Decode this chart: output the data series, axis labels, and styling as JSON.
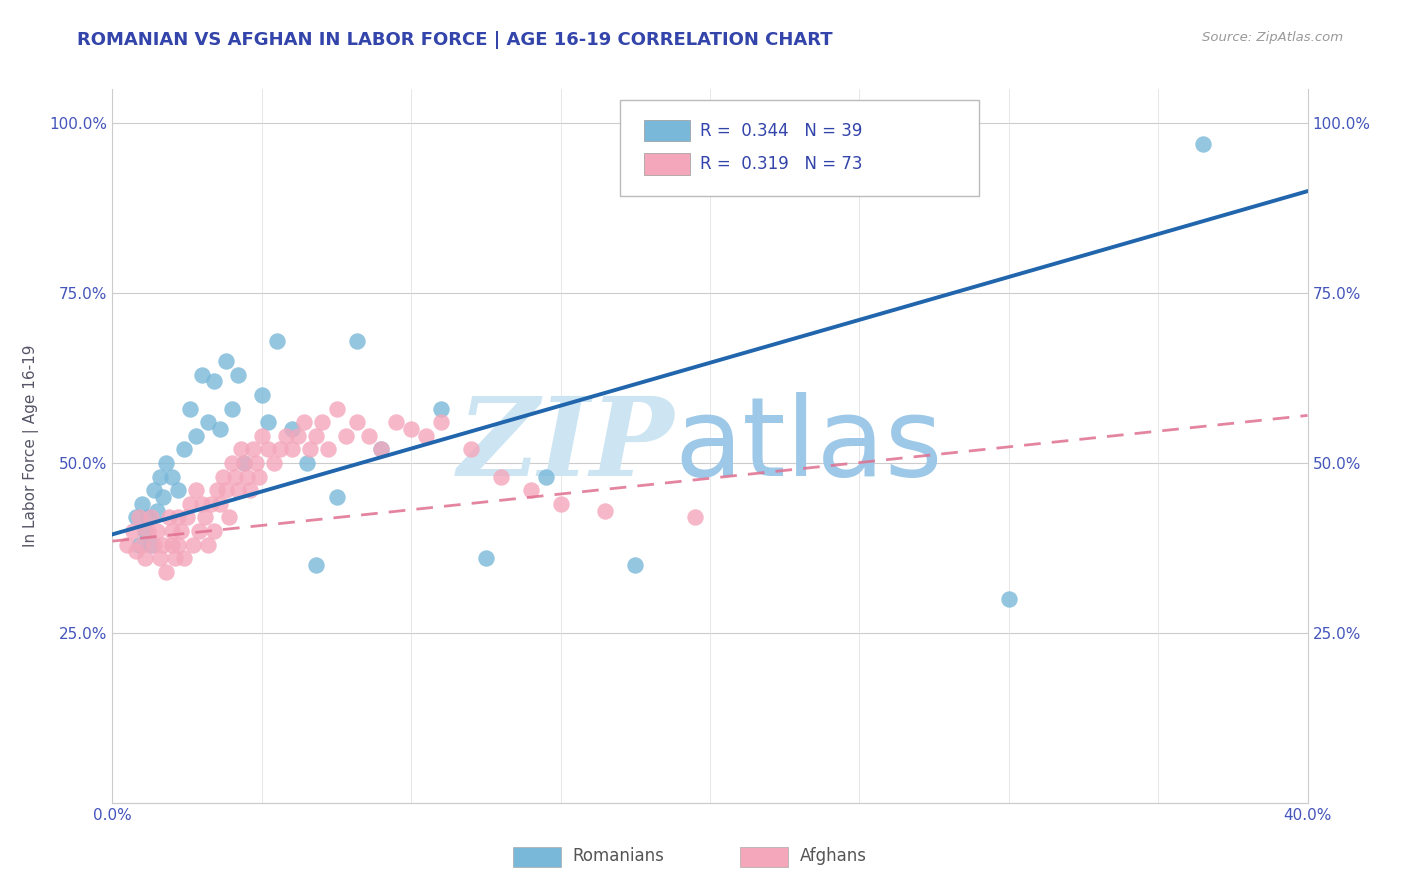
{
  "title": "ROMANIAN VS AFGHAN IN LABOR FORCE | AGE 16-19 CORRELATION CHART",
  "source_text": "Source: ZipAtlas.com",
  "ylabel": "In Labor Force | Age 16-19",
  "xlim": [
    0.0,
    0.4
  ],
  "ylim": [
    0.0,
    1.05
  ],
  "xticks": [
    0.0,
    0.05,
    0.1,
    0.15,
    0.2,
    0.25,
    0.3,
    0.35,
    0.4
  ],
  "xticklabels": [
    "0.0%",
    "",
    "",
    "",
    "",
    "",
    "",
    "",
    "40.0%"
  ],
  "yticks": [
    0.0,
    0.25,
    0.5,
    0.75,
    1.0
  ],
  "yticklabels_left": [
    "",
    "25.0%",
    "50.0%",
    "75.0%",
    "100.0%"
  ],
  "yticklabels_right": [
    "",
    "25.0%",
    "50.0%",
    "75.0%",
    "100.0%"
  ],
  "romanian_R": 0.344,
  "romanian_N": 39,
  "afghan_R": 0.319,
  "afghan_N": 73,
  "romanian_color": "#7ab8d9",
  "afghan_color": "#f4a7bb",
  "romanian_line_color": "#2166ac",
  "afghan_line_color": "#e07090",
  "title_color": "#3344aa",
  "axis_label_color": "#555566",
  "tick_color": "#4455bb",
  "legend_color": "#3344aa",
  "watermark_zip_color": "#cde5f2",
  "watermark_atlas_color": "#9dc8e8",
  "romanians_x": [
    0.008,
    0.009,
    0.01,
    0.011,
    0.012,
    0.013,
    0.014,
    0.015,
    0.016,
    0.017,
    0.018,
    0.02,
    0.022,
    0.024,
    0.026,
    0.028,
    0.03,
    0.032,
    0.034,
    0.036,
    0.038,
    0.04,
    0.042,
    0.044,
    0.05,
    0.052,
    0.055,
    0.06,
    0.065,
    0.068,
    0.075,
    0.082,
    0.09,
    0.11,
    0.125,
    0.145,
    0.175,
    0.3,
    0.365
  ],
  "romanians_y": [
    0.42,
    0.38,
    0.44,
    0.4,
    0.42,
    0.38,
    0.46,
    0.43,
    0.48,
    0.45,
    0.5,
    0.48,
    0.46,
    0.52,
    0.58,
    0.54,
    0.63,
    0.56,
    0.62,
    0.55,
    0.65,
    0.58,
    0.63,
    0.5,
    0.6,
    0.56,
    0.68,
    0.55,
    0.5,
    0.35,
    0.45,
    0.68,
    0.52,
    0.58,
    0.36,
    0.48,
    0.35,
    0.3,
    0.97
  ],
  "afghans_x": [
    0.005,
    0.007,
    0.008,
    0.009,
    0.01,
    0.011,
    0.012,
    0.013,
    0.014,
    0.015,
    0.016,
    0.017,
    0.018,
    0.019,
    0.02,
    0.02,
    0.021,
    0.022,
    0.022,
    0.023,
    0.024,
    0.025,
    0.026,
    0.027,
    0.028,
    0.029,
    0.03,
    0.031,
    0.032,
    0.033,
    0.034,
    0.035,
    0.036,
    0.037,
    0.038,
    0.039,
    0.04,
    0.041,
    0.042,
    0.043,
    0.044,
    0.045,
    0.046,
    0.047,
    0.048,
    0.049,
    0.05,
    0.052,
    0.054,
    0.056,
    0.058,
    0.06,
    0.062,
    0.064,
    0.066,
    0.068,
    0.07,
    0.072,
    0.075,
    0.078,
    0.082,
    0.086,
    0.09,
    0.095,
    0.1,
    0.105,
    0.11,
    0.12,
    0.13,
    0.14,
    0.15,
    0.165,
    0.195
  ],
  "afghans_y": [
    0.38,
    0.4,
    0.37,
    0.42,
    0.38,
    0.36,
    0.4,
    0.42,
    0.38,
    0.4,
    0.36,
    0.38,
    0.34,
    0.42,
    0.38,
    0.4,
    0.36,
    0.38,
    0.42,
    0.4,
    0.36,
    0.42,
    0.44,
    0.38,
    0.46,
    0.4,
    0.44,
    0.42,
    0.38,
    0.44,
    0.4,
    0.46,
    0.44,
    0.48,
    0.46,
    0.42,
    0.5,
    0.48,
    0.46,
    0.52,
    0.5,
    0.48,
    0.46,
    0.52,
    0.5,
    0.48,
    0.54,
    0.52,
    0.5,
    0.52,
    0.54,
    0.52,
    0.54,
    0.56,
    0.52,
    0.54,
    0.56,
    0.52,
    0.58,
    0.54,
    0.56,
    0.54,
    0.52,
    0.56,
    0.55,
    0.54,
    0.56,
    0.52,
    0.48,
    0.46,
    0.44,
    0.43,
    0.42
  ],
  "rom_line_x0": 0.0,
  "rom_line_y0": 0.395,
  "rom_line_x1": 0.4,
  "rom_line_y1": 0.9,
  "afg_line_x0": 0.0,
  "afg_line_y0": 0.385,
  "afg_line_x1": 0.4,
  "afg_line_y1": 0.57
}
